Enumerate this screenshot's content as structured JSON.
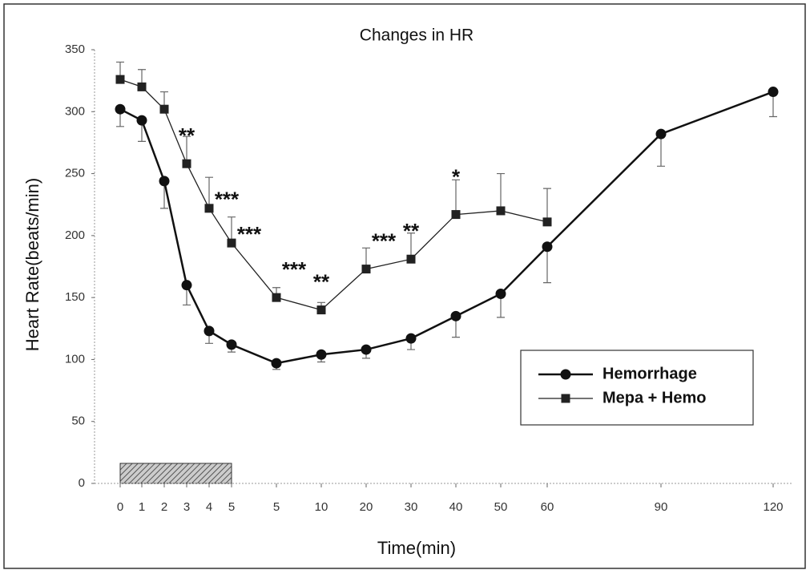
{
  "chart_data": {
    "type": "line",
    "title": "Changes in HR",
    "x_label": "Time(min)",
    "y_label": "Heart Rate(beats/min)",
    "categories": [
      "0",
      "1",
      "2",
      "3",
      "4",
      "5",
      "5",
      "10",
      "20",
      "30",
      "40",
      "50",
      "60",
      "90",
      "120"
    ],
    "series": [
      {
        "name": "Hemorrhage",
        "color": "#111111",
        "marker": "circle",
        "values": [
          302,
          293,
          244,
          160,
          123,
          112,
          97,
          104,
          108,
          117,
          135,
          153,
          191,
          282,
          316
        ],
        "errors": [
          14,
          17,
          22,
          16,
          10,
          6,
          5,
          6,
          7,
          9,
          17,
          19,
          29,
          26,
          20
        ]
      },
      {
        "name": "Mepa + Hemo",
        "color": "#222222",
        "marker": "square",
        "values": [
          326,
          320,
          302,
          258,
          222,
          194,
          150,
          140,
          173,
          181,
          217,
          220,
          211,
          null,
          null
        ],
        "errors": [
          14,
          14,
          14,
          22,
          25,
          21,
          8,
          6,
          17,
          21,
          28,
          30,
          27,
          null,
          null
        ]
      }
    ],
    "significance": [
      null,
      null,
      null,
      "**",
      "***",
      "***",
      "***",
      "**",
      "***",
      "**",
      "*",
      null,
      null,
      null,
      null
    ],
    "ylim": [
      0,
      350
    ],
    "yticks": [
      0,
      50,
      100,
      150,
      200,
      250,
      300,
      350
    ],
    "legend": "lower right"
  }
}
